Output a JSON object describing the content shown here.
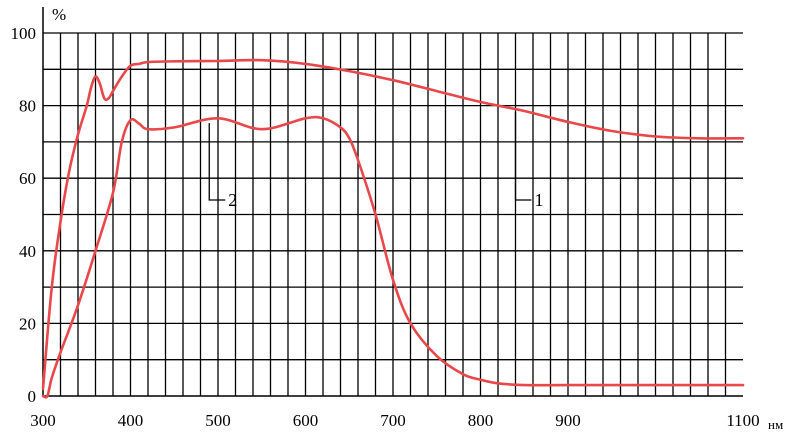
{
  "chart_data": {
    "type": "line",
    "title": "",
    "xlabel": "",
    "ylabel": "",
    "x_unit": "нм",
    "y_unit": "%",
    "xlim": [
      300,
      1100
    ],
    "ylim": [
      0,
      100
    ],
    "x_ticks": [
      300,
      400,
      500,
      600,
      700,
      800,
      900,
      1100
    ],
    "y_ticks": [
      0,
      20,
      40,
      60,
      80,
      100
    ],
    "x_grid_step": 20,
    "y_grid_step": 10,
    "grid": true,
    "line_color": "#e8484a",
    "series": [
      {
        "name": "1",
        "x": [
          300,
          310,
          320,
          330,
          340,
          350,
          355,
          360,
          365,
          370,
          375,
          380,
          390,
          400,
          410,
          420,
          450,
          500,
          550,
          600,
          650,
          700,
          750,
          800,
          850,
          900,
          950,
          1000,
          1050,
          1100
        ],
        "y": [
          2,
          30,
          48,
          62,
          72,
          80,
          85,
          88,
          86,
          82,
          82,
          84,
          88,
          91,
          91.5,
          92,
          92.2,
          92.3,
          92.5,
          91.5,
          89.5,
          87,
          84,
          81,
          78.5,
          75.5,
          73,
          71.5,
          71,
          71
        ]
      },
      {
        "name": "2",
        "x": [
          300,
          305,
          310,
          320,
          340,
          360,
          380,
          390,
          400,
          410,
          420,
          450,
          500,
          550,
          600,
          620,
          640,
          650,
          660,
          680,
          700,
          720,
          750,
          780,
          800,
          820,
          850,
          900,
          1000,
          1100
        ],
        "y": [
          0,
          0,
          5,
          12,
          25,
          40,
          56,
          70,
          76,
          75,
          73.5,
          74,
          76.5,
          73.5,
          76.5,
          76.5,
          74,
          71,
          65,
          50,
          32,
          20,
          11,
          6,
          4.5,
          3.5,
          3,
          3,
          3,
          3
        ]
      }
    ],
    "annotations": [
      {
        "text": "1",
        "series": "1",
        "at_x": 840
      },
      {
        "text": "2",
        "series": "2",
        "at_x": 490
      }
    ]
  }
}
